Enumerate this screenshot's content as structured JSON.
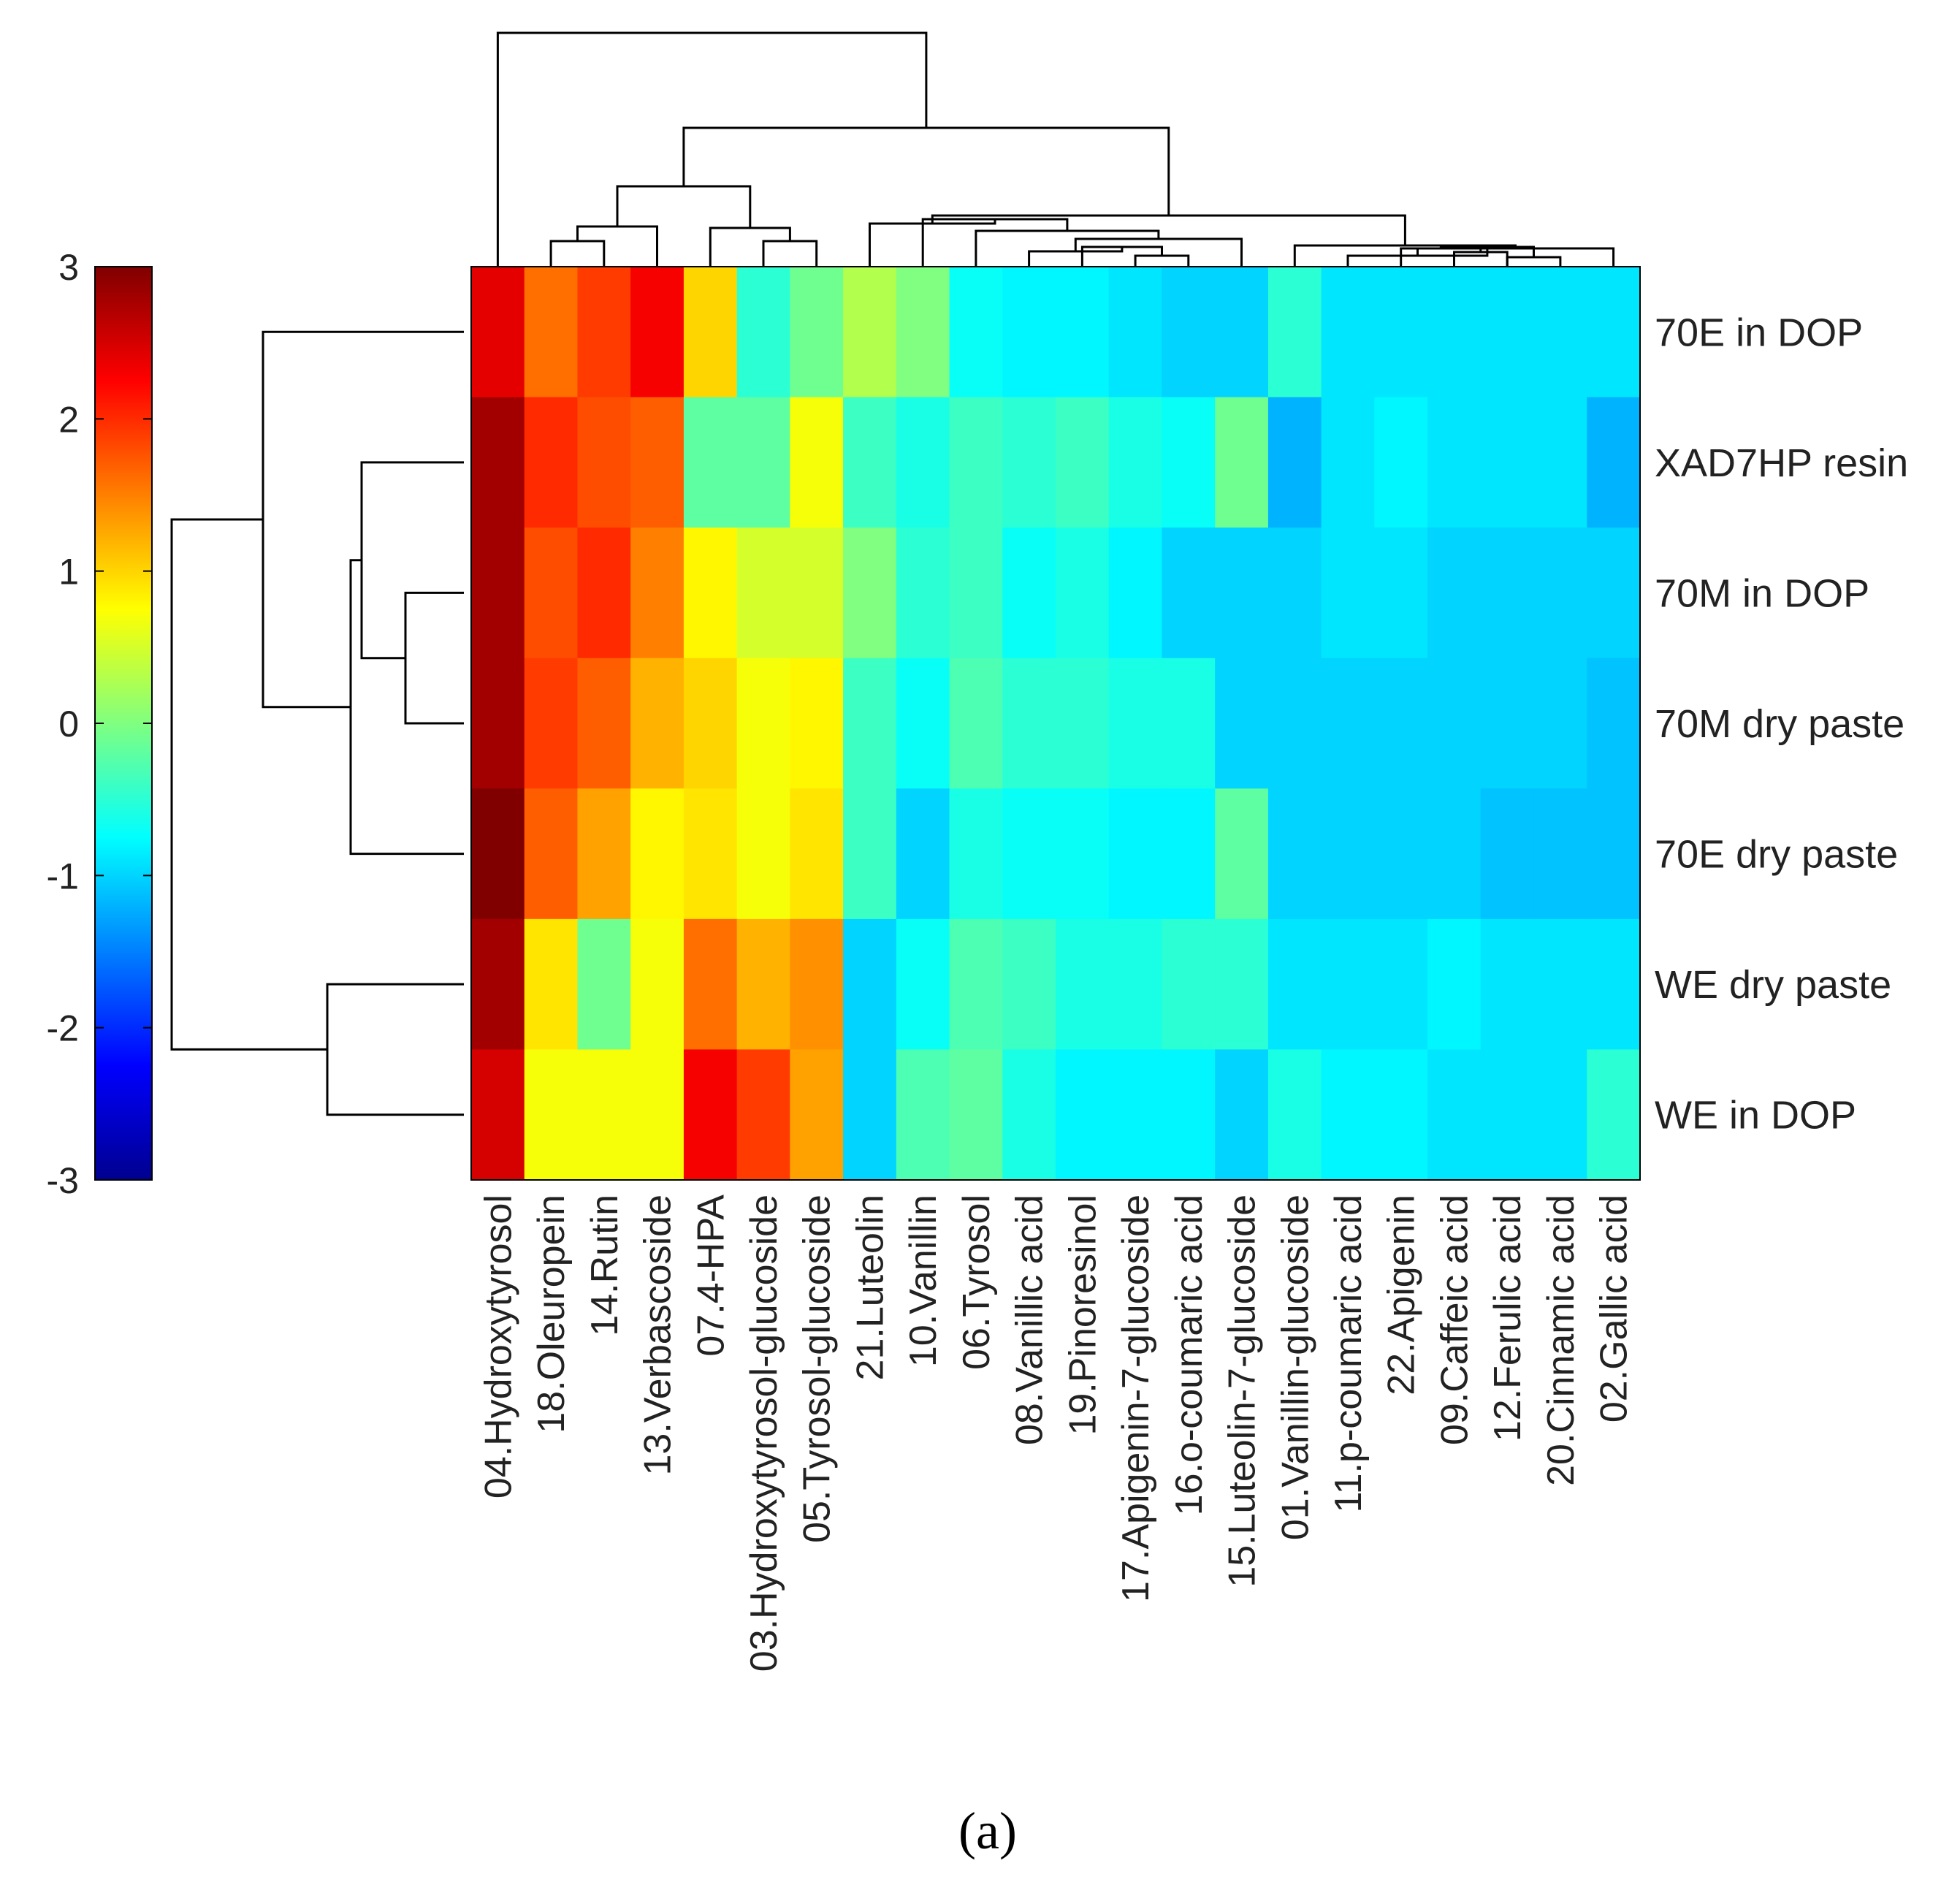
{
  "chart_data": {
    "type": "heatmap",
    "panel_label": "(a)",
    "colormap": "jet",
    "color_range": [
      -3,
      3
    ],
    "colorbar_ticks": [
      "3",
      "2",
      "1",
      "0",
      "-1",
      "-2",
      "-3"
    ],
    "rows": [
      "70E in DOP",
      "XAD7HP resin",
      "70M in DOP",
      "70M dry paste",
      "70E dry paste",
      "WE dry paste",
      "WE in DOP"
    ],
    "columns": [
      "04.Hydroxytyrosol",
      "18.Oleuropein",
      "14.Rutin",
      "13.Verbascoside",
      "07.4-HPA",
      "03.Hydroxytyrosol-glucoside",
      "05.Tyrosol-glucoside",
      "21.Luteolin",
      "10.Vanillin",
      "06.Tyrosol",
      "08.Vanillic acid",
      "19.Pinoresinol",
      "17.Apigenin-7-glucoside",
      "16.o-coumaric acid",
      "15.Luteolin-7-glucoside",
      "01.Vanillin-glucoside",
      "11.p-coumaric acid",
      "22.Apigenin",
      "09.Caffeic acid",
      "12.Ferulic acid",
      "20.Cinnamic acid",
      "02.Gallic acid"
    ],
    "values": [
      [
        2.4,
        1.6,
        1.9,
        2.3,
        1.0,
        -0.5,
        -0.1,
        0.3,
        0.0,
        -0.7,
        -0.8,
        -0.8,
        -0.9,
        -1.0,
        -1.0,
        -0.5,
        -0.9,
        -0.9,
        -0.9,
        -0.9,
        -0.9,
        -0.9
      ],
      [
        2.8,
        2.0,
        1.8,
        1.7,
        -0.2,
        -0.2,
        0.7,
        -0.4,
        -0.6,
        -0.4,
        -0.5,
        -0.4,
        -0.6,
        -0.7,
        -0.1,
        -1.2,
        -0.9,
        -0.8,
        -0.9,
        -0.9,
        -0.9,
        -1.2
      ],
      [
        2.8,
        1.8,
        2.0,
        1.5,
        0.8,
        0.5,
        0.5,
        0.0,
        -0.5,
        -0.4,
        -0.7,
        -0.6,
        -0.8,
        -1.0,
        -1.0,
        -1.0,
        -0.9,
        -0.9,
        -1.0,
        -1.0,
        -1.0,
        -1.0
      ],
      [
        2.8,
        1.9,
        1.7,
        1.2,
        1.0,
        0.7,
        0.8,
        -0.4,
        -0.7,
        -0.3,
        -0.5,
        -0.5,
        -0.6,
        -0.6,
        -1.0,
        -1.0,
        -1.0,
        -1.0,
        -1.0,
        -1.0,
        -1.0,
        -1.1
      ],
      [
        3.0,
        1.7,
        1.3,
        0.8,
        0.9,
        0.7,
        0.9,
        -0.4,
        -1.0,
        -0.6,
        -0.7,
        -0.7,
        -0.8,
        -0.8,
        -0.2,
        -1.0,
        -1.0,
        -1.0,
        -1.0,
        -1.1,
        -1.1,
        -1.1
      ],
      [
        2.8,
        0.9,
        -0.1,
        0.7,
        1.6,
        1.2,
        1.4,
        -1.0,
        -0.7,
        -0.3,
        -0.4,
        -0.6,
        -0.6,
        -0.5,
        -0.5,
        -0.9,
        -0.9,
        -0.9,
        -0.8,
        -0.9,
        -0.9,
        -0.9
      ],
      [
        2.5,
        0.7,
        0.7,
        0.7,
        2.3,
        1.9,
        1.3,
        -1.0,
        -0.3,
        -0.2,
        -0.6,
        -0.8,
        -0.8,
        -0.8,
        -1.0,
        -0.6,
        -0.8,
        -0.8,
        -0.9,
        -0.9,
        -0.9,
        -0.5
      ]
    ]
  }
}
